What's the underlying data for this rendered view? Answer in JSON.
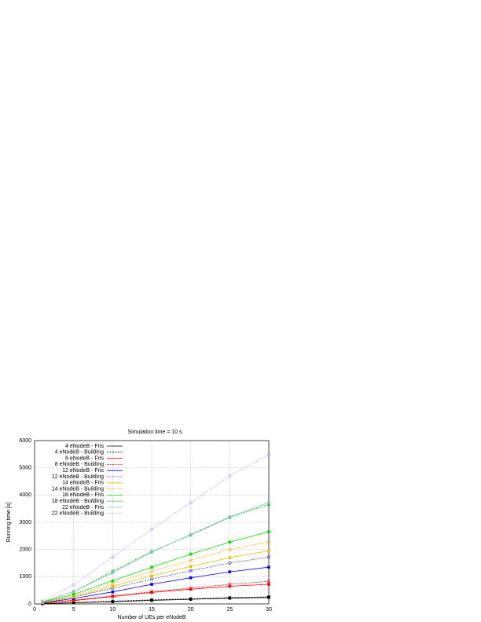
{
  "chart_data": {
    "type": "line",
    "title": "Simulation time = 10 s",
    "x_label": "Number of UEs per eNodeB",
    "y_label": "Running time [s]",
    "x": [
      1,
      5,
      10,
      15,
      20,
      25,
      30
    ],
    "xlim": [
      0,
      30
    ],
    "xticks": [
      0,
      5,
      10,
      15,
      20,
      25,
      30
    ],
    "ylim": [
      0,
      6000
    ],
    "yticks": [
      0,
      1000,
      2000,
      3000,
      4000,
      5000,
      6000
    ],
    "grid": true,
    "legend": "upper left",
    "series": [
      {
        "name": "4 eNodeB - Fris",
        "color": "#000000",
        "dashed": false,
        "values": [
          10,
          40,
          80,
          130,
          170,
          210,
          240
        ]
      },
      {
        "name": "4 eNodeB - Building",
        "color": "#000000",
        "dashed": true,
        "values": [
          12,
          50,
          100,
          150,
          190,
          230,
          260
        ]
      },
      {
        "name": "8 eNodeB - Fris",
        "color": "#ff0000",
        "dashed": false,
        "values": [
          30,
          120,
          270,
          420,
          540,
          650,
          720
        ]
      },
      {
        "name": "8 eNodeB - Building",
        "color": "#ff0000",
        "dashed": true,
        "values": [
          35,
          140,
          290,
          450,
          580,
          720,
          830
        ]
      },
      {
        "name": "12 eNodeB - Fris",
        "color": "#0000ff",
        "dashed": false,
        "values": [
          40,
          200,
          440,
          720,
          960,
          1180,
          1350
        ]
      },
      {
        "name": "12 eNodeB - Building",
        "color": "#4040c0",
        "dashed": true,
        "values": [
          50,
          250,
          580,
          910,
          1220,
          1500,
          1720
        ]
      },
      {
        "name": "14 eNodeB - Fris",
        "color": "#f0c000",
        "dashed": false,
        "values": [
          55,
          260,
          650,
          1030,
          1380,
          1700,
          1950
        ]
      },
      {
        "name": "14 eNodeB - Building",
        "color": "#f0b000",
        "dashed": true,
        "values": [
          60,
          300,
          750,
          1200,
          1600,
          2000,
          2280
        ]
      },
      {
        "name": "18 eNodeB - Fris",
        "color": "#00e000",
        "dashed": false,
        "values": [
          70,
          350,
          850,
          1350,
          1830,
          2270,
          2650
        ]
      },
      {
        "name": "18 eNodeB - Building",
        "color": "#00c000",
        "dashed": true,
        "values": [
          80,
          450,
          1200,
          1920,
          2530,
          3180,
          3650
        ]
      },
      {
        "name": "22 eNodeB - Fris",
        "color": "#80c0c0",
        "dashed": false,
        "values": [
          80,
          450,
          1150,
          1900,
          2550,
          3200,
          3720
        ]
      },
      {
        "name": "22 eNodeB - Building",
        "color": "#c0a0ff",
        "dashed": true,
        "values": [
          100,
          700,
          1720,
          2750,
          3720,
          4700,
          5480
        ]
      }
    ]
  }
}
